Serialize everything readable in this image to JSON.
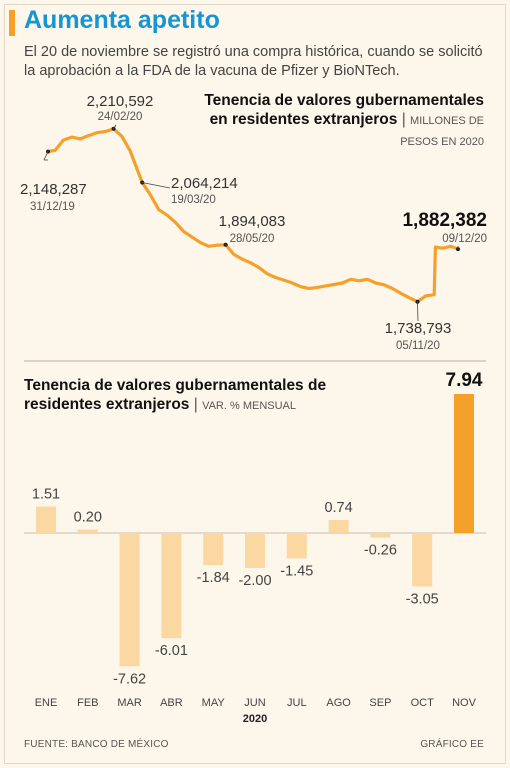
{
  "header": {
    "title": "Aumenta apetito",
    "subtitle": "El 20 de noviembre se registró una compra histórica, cuando se solicitó la aprobación a la FDA de la vacuna de Pfizer y BioNTech."
  },
  "chart_data": [
    {
      "type": "line",
      "title": "Tenencia de valores gubernamentales en residentes extranjeros",
      "title_sep": "|",
      "unit": "MILLONES DE PESOS EN 2020",
      "color": "#f5a02b",
      "x": [
        "2019-12-31",
        "2020-01-06",
        "2020-01-13",
        "2020-01-20",
        "2020-01-27",
        "2020-02-03",
        "2020-02-10",
        "2020-02-17",
        "2020-02-24",
        "2020-03-02",
        "2020-03-09",
        "2020-03-19",
        "2020-03-26",
        "2020-04-02",
        "2020-04-09",
        "2020-04-16",
        "2020-04-23",
        "2020-04-30",
        "2020-05-07",
        "2020-05-14",
        "2020-05-21",
        "2020-05-28",
        "2020-06-04",
        "2020-06-11",
        "2020-06-18",
        "2020-06-25",
        "2020-07-02",
        "2020-07-09",
        "2020-07-16",
        "2020-07-23",
        "2020-07-30",
        "2020-08-06",
        "2020-08-13",
        "2020-08-20",
        "2020-08-27",
        "2020-09-03",
        "2020-09-10",
        "2020-09-17",
        "2020-09-24",
        "2020-10-01",
        "2020-10-08",
        "2020-10-15",
        "2020-10-22",
        "2020-10-29",
        "2020-11-05",
        "2020-11-12",
        "2020-11-19",
        "2020-11-20",
        "2020-11-26",
        "2020-12-03",
        "2020-12-09"
      ],
      "y": [
        2148287,
        2152000,
        2180000,
        2188000,
        2183000,
        2192000,
        2200000,
        2203000,
        2210592,
        2190000,
        2150000,
        2064214,
        2030000,
        1990000,
        1975000,
        1955000,
        1930000,
        1915000,
        1900000,
        1890000,
        1893000,
        1894083,
        1868000,
        1855000,
        1845000,
        1832000,
        1815000,
        1805000,
        1798000,
        1790000,
        1780000,
        1775000,
        1778000,
        1782000,
        1786000,
        1790000,
        1800000,
        1796000,
        1800000,
        1790000,
        1785000,
        1775000,
        1762000,
        1750000,
        1738793,
        1755000,
        1758000,
        1888000,
        1885000,
        1890000,
        1882382
      ],
      "ylim": [
        1700000,
        2240000
      ],
      "annotations": [
        {
          "value": "2,148,287",
          "date": "31/12/19"
        },
        {
          "value": "2,210,592",
          "date": "24/02/20"
        },
        {
          "value": "2,064,214",
          "date": "19/03/20"
        },
        {
          "value": "1,894,083",
          "date": "28/05/20"
        },
        {
          "value": "1,738,793",
          "date": "05/11/20"
        },
        {
          "value": "1,882,382",
          "date": "09/12/20"
        }
      ]
    },
    {
      "type": "bar",
      "title": "Tenencia de valores gubernamentales de residentes extranjeros",
      "title_sep": "|",
      "unit": "VAR. % MENSUAL",
      "categories": [
        "ENE",
        "FEB",
        "MAR",
        "ABR",
        "MAY",
        "JUN",
        "JUL",
        "AGO",
        "SEP",
        "OCT",
        "NOV"
      ],
      "values": [
        1.51,
        0.2,
        -7.62,
        -6.01,
        -1.84,
        -2.0,
        -1.45,
        0.74,
        -0.26,
        -3.05,
        7.94
      ],
      "value_labels": [
        "1.51",
        "0.20",
        "-7.62",
        "-6.01",
        "-1.84",
        "-2.00",
        "-1.45",
        "0.74",
        "-0.26",
        "-3.05",
        "7.94"
      ],
      "year_label": "2020",
      "ylim": [
        -8.5,
        8.5
      ],
      "bar_color": "#fbd7a2",
      "highlight_color": "#f5a02b"
    }
  ],
  "footer": {
    "source": "FUENTE: BANCO DE MÉXICO",
    "credit": "GRÁFICO EE"
  }
}
